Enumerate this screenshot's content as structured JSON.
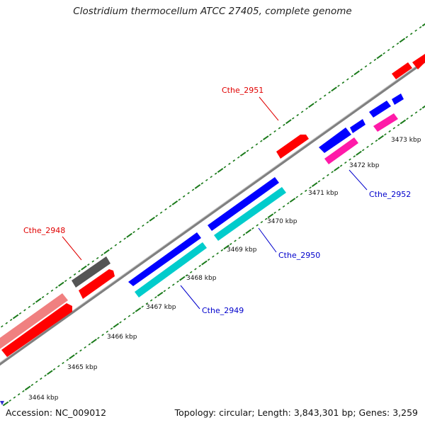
{
  "title": "Clostridium thermocellum ATCC 27405, complete genome",
  "footer": {
    "accession": "Accession: NC_009012",
    "summary": "Topology: circular; Length: 3,843,301 bp; Genes: 3,259"
  },
  "colors": {
    "backbone": "#808080",
    "tick": "#1a7a1a",
    "red_gene": "#ff0000",
    "pink_gene": "#f08080",
    "grey_gene": "#555555",
    "blue_gene": "#0000ff",
    "cyan_gene": "#00cccc",
    "magenta_gene": "#ff1aa8",
    "forward_label": "#e00000",
    "reverse_label": "#0000cc"
  },
  "ruler": {
    "unit": "kbp",
    "ticks": [
      "3464 kbp",
      "3465 kbp",
      "3466 kbp",
      "3467 kbp",
      "3468 kbp",
      "3469 kbp",
      "3470 kbp",
      "3471 kbp",
      "3472 kbp",
      "3473 kbp"
    ]
  },
  "gene_labels": [
    {
      "id": "Cthe_2951",
      "strand": "forward"
    },
    {
      "id": "Cthe_2948",
      "strand": "forward"
    },
    {
      "id": "Cthe_2952",
      "strand": "reverse"
    },
    {
      "id": "Cthe_2950",
      "strand": "reverse"
    },
    {
      "id": "Cthe_2949",
      "strand": "reverse"
    }
  ]
}
